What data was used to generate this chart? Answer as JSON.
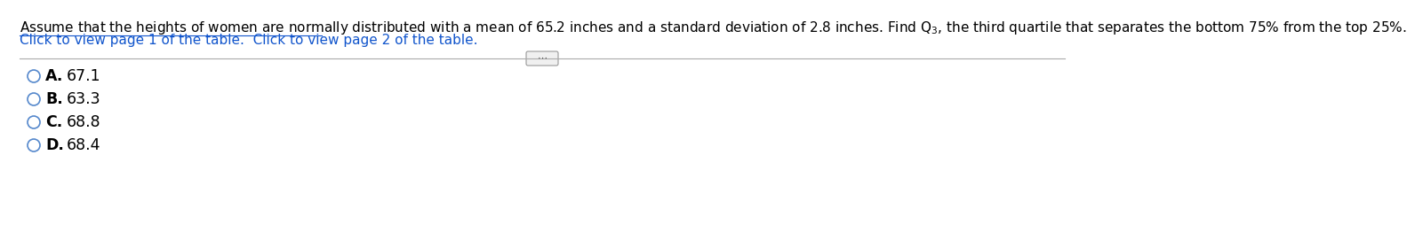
{
  "title_text": "Assume that the heights of women are normally distributed with a mean of 65.2 inches and a standard deviation of 2.8 inches. Find Q$_3$, the third quartile that separates the bottom 75% from the top 25%.",
  "link_text": "Click to view page 1 of the table.  Click to view page 2 of the table.",
  "options": [
    {
      "letter": "A.",
      "value": "67.1"
    },
    {
      "letter": "B.",
      "value": "63.3"
    },
    {
      "letter": "C.",
      "value": "68.8"
    },
    {
      "letter": "D.",
      "value": "68.4"
    }
  ],
  "bg_color": "#ffffff",
  "text_color": "#000000",
  "link_color": "#1155CC",
  "option_color": "#000000",
  "circle_color": "#5588CC",
  "divider_color": "#aaaaaa",
  "title_fontsize": 11.0,
  "link_fontsize": 11.0,
  "option_fontsize": 12.5,
  "fig_width": 12.0,
  "fig_height": 2.34
}
